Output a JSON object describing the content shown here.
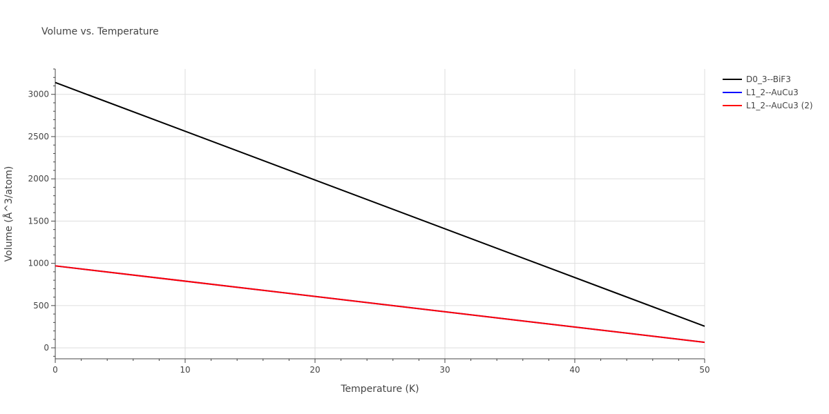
{
  "chart_data": {
    "type": "line",
    "title": "Volume vs. Temperature",
    "xlabel": "Temperature (K)",
    "ylabel": "Volume (Å^3/atom)",
    "xlim": [
      0,
      50
    ],
    "ylim": [
      -130,
      3300
    ],
    "x_ticks": [
      0,
      10,
      20,
      30,
      40,
      50
    ],
    "y_ticks": [
      0,
      500,
      1000,
      1500,
      2000,
      2500,
      3000
    ],
    "x_tick_labels": [
      "0",
      "10",
      "20",
      "30",
      "40",
      "50"
    ],
    "y_tick_labels": [
      "0",
      "500",
      "1000",
      "1500",
      "2000",
      "2500",
      "3000"
    ],
    "grid": true,
    "legend_position": "top-right outside",
    "series": [
      {
        "name": "D0_3--BiF3",
        "color": "#000000",
        "x": [
          0,
          50
        ],
        "y": [
          3140,
          255
        ]
      },
      {
        "name": "L1_2--AuCu3",
        "color": "#0000ff",
        "x": [
          0,
          50
        ],
        "y": [
          970,
          65
        ]
      },
      {
        "name": "L1_2--AuCu3 (2)",
        "color": "#ff0000",
        "x": [
          0,
          50
        ],
        "y": [
          970,
          65
        ]
      }
    ]
  }
}
